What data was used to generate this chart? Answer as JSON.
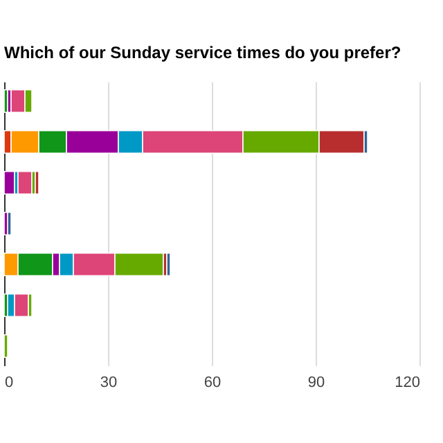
{
  "chart_data": {
    "type": "bar",
    "orientation": "horizontal",
    "stacked": true,
    "title": "Which of our Sunday service times do you prefer?",
    "categories": [
      null,
      null,
      null,
      null,
      null,
      null,
      null
    ],
    "series": [
      {
        "color": "#dc3912",
        "values": [
          0,
          2,
          0,
          0,
          0,
          0,
          0
        ]
      },
      {
        "color": "#ff9900",
        "values": [
          0,
          8,
          0,
          0,
          4,
          0,
          0
        ]
      },
      {
        "color": "#109618",
        "values": [
          1,
          8,
          0,
          0,
          10,
          1,
          0
        ]
      },
      {
        "color": "#990099",
        "values": [
          1,
          15,
          3,
          1,
          2,
          0,
          0
        ]
      },
      {
        "color": "#0099c6",
        "values": [
          0,
          7,
          1,
          0,
          4,
          2,
          0
        ]
      },
      {
        "color": "#dd4477",
        "values": [
          4,
          29,
          4,
          0,
          12,
          4,
          0
        ]
      },
      {
        "color": "#66aa00",
        "values": [
          2,
          22,
          1,
          0,
          14,
          1,
          1
        ]
      },
      {
        "color": "#b82e2e",
        "values": [
          0,
          13,
          1,
          0,
          1,
          0,
          0
        ]
      },
      {
        "color": "#316395",
        "values": [
          0,
          1,
          0,
          1,
          1,
          0,
          0
        ]
      }
    ],
    "xlim": [
      0,
      120
    ],
    "xticks": [
      0,
      30,
      60,
      90,
      120
    ],
    "grid": "x",
    "tick_labels": "x",
    "legend": false
  }
}
